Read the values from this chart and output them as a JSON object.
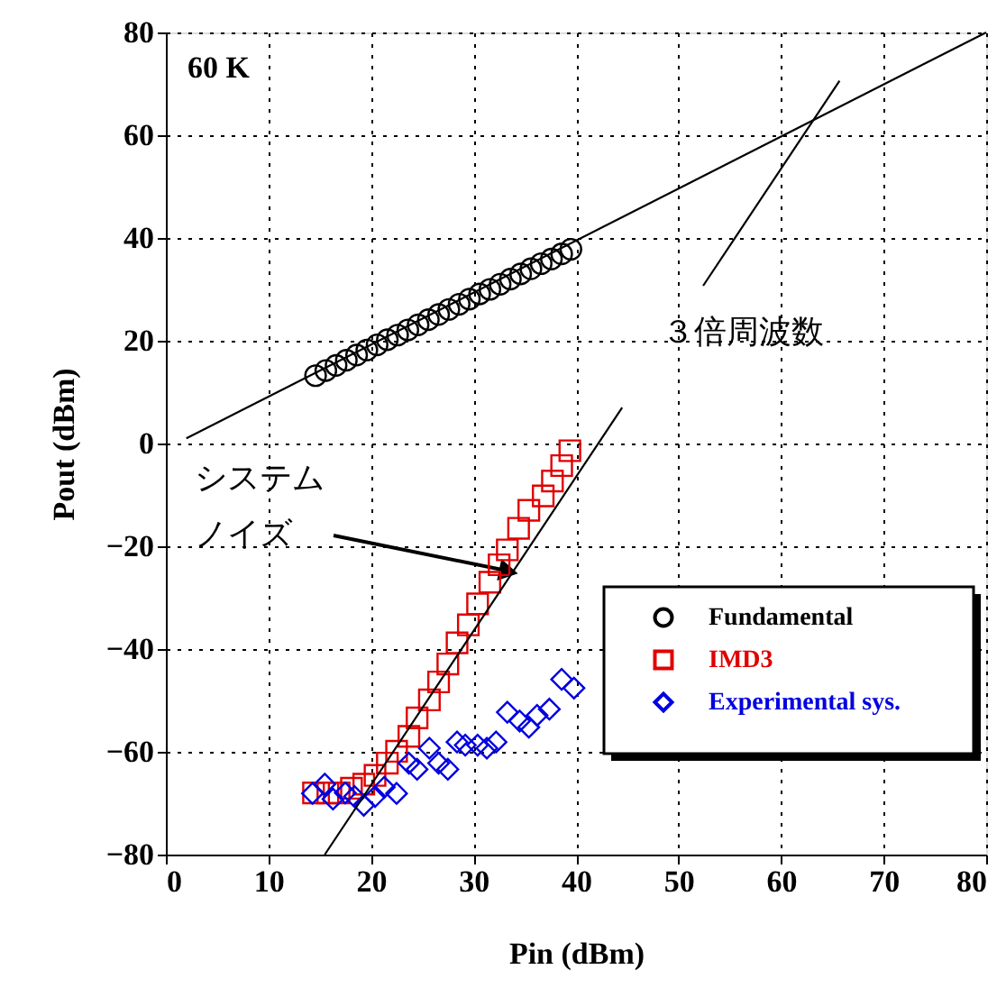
{
  "chart_data": {
    "type": "scatter",
    "xlabel": "Pin (dBm)",
    "ylabel": "Pout (dBm)",
    "xlim": [
      0,
      80
    ],
    "ylim": [
      -80,
      80
    ],
    "xticks": [
      0,
      10,
      20,
      30,
      40,
      50,
      60,
      70,
      80
    ],
    "yticks": [
      -80,
      -60,
      -40,
      -20,
      0,
      20,
      40,
      60,
      80
    ],
    "grid": true,
    "legend": "bottom right",
    "annotations": [
      "60 K",
      "３倍周波数",
      {
        "text": "システム",
        "x": 34.3,
        "y": -25.3
      },
      "ノイズ"
    ],
    "series": [
      {
        "name": "Fundamental",
        "marker": "circle",
        "color": "#000000",
        "x": [
          14.6,
          15.6,
          16.6,
          17.6,
          18.6,
          19.6,
          20.6,
          21.6,
          22.6,
          23.6,
          24.6,
          25.6,
          26.6,
          27.6,
          28.6,
          29.6,
          30.6,
          31.6,
          32.6,
          33.6,
          34.6,
          35.6,
          36.6,
          37.6,
          38.6,
          39.5
        ],
        "values": [
          13.2,
          14.2,
          15.2,
          16.2,
          17.2,
          18.2,
          19.2,
          20.2,
          21.1,
          22.1,
          23.1,
          24.1,
          25.1,
          26.1,
          27.1,
          28.1,
          29.1,
          30.0,
          31.0,
          32.0,
          33.0,
          34.0,
          35.0,
          35.9,
          36.9,
          37.8
        ]
      },
      {
        "name": "IMD3",
        "marker": "square",
        "color": "#e00000",
        "x": [
          14.4,
          15.8,
          16.9,
          18.1,
          19.3,
          20.4,
          21.6,
          22.5,
          23.7,
          24.5,
          25.7,
          26.6,
          27.5,
          28.4,
          29.5,
          30.4,
          31.6,
          32.5,
          33.3,
          34.4,
          35.4,
          36.8,
          37.7,
          38.6,
          39.4
        ],
        "values": [
          -68,
          -68,
          -68,
          -67.1,
          -66.3,
          -64.6,
          -62.2,
          -59.9,
          -57,
          -53.4,
          -49.9,
          -46.4,
          -42.9,
          -38.8,
          -35.3,
          -31.2,
          -27,
          -23.6,
          -20.7,
          -16.5,
          -13,
          -10.2,
          -7.3,
          -4.3,
          -1.4
        ]
      },
      {
        "name": "Experimental sys.",
        "marker": "diamond",
        "color": "#0000e0",
        "x": [
          14.3,
          15.5,
          16.3,
          17.5,
          18.4,
          19.3,
          20.4,
          21.3,
          22.5,
          23.7,
          24.5,
          25.7,
          26.6,
          27.5,
          28.4,
          29.2,
          30.4,
          31.3,
          32.2,
          33.3,
          34.5,
          35.4,
          36.2,
          37.4,
          38.6,
          39.8
        ],
        "values": [
          -68.1,
          -66.3,
          -69.2,
          -68,
          -68.7,
          -70.4,
          -68.7,
          -66.9,
          -68.1,
          -62.2,
          -63.4,
          -59.3,
          -62.2,
          -63.4,
          -58.1,
          -58.7,
          -58.7,
          -59.3,
          -58.1,
          -52.3,
          -54,
          -55.2,
          -52.9,
          -51.7,
          -45.9,
          -47.6
        ]
      },
      {
        "type": "line",
        "color": "#000000",
        "x": [
          2,
          80
        ],
        "values": [
          1,
          80
        ]
      },
      {
        "type": "line",
        "color": "#000000",
        "x": [
          15.5,
          44.5
        ],
        "values": [
          -80,
          7
        ]
      },
      {
        "type": "line",
        "color": "#000000",
        "x": [
          52.4,
          65.7
        ],
        "values": [
          30.7,
          70.6
        ]
      }
    ]
  }
}
